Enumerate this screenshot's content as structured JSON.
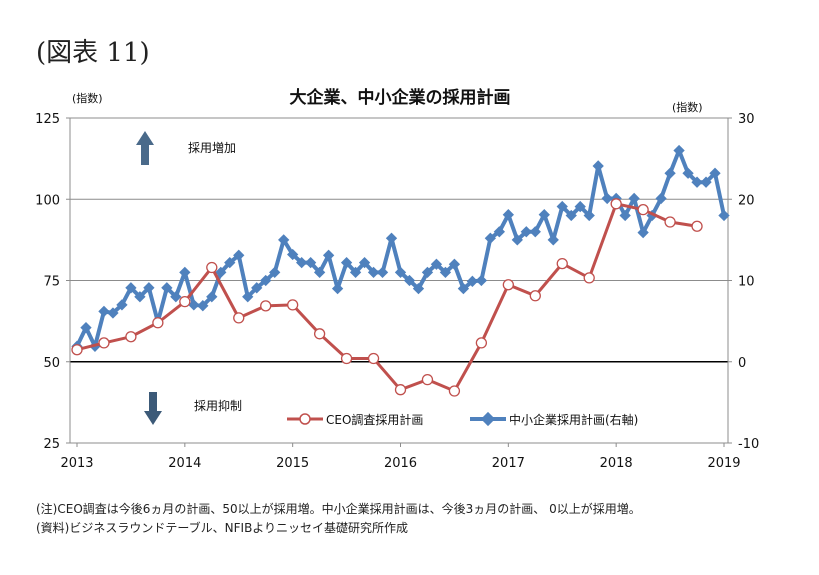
{
  "figure_label": "(図表 11)",
  "notes": [
    "(注)CEO調査は今後6ヵ月の計画、50以上が採用増。中小企業採用計画は、今後3ヵ月の計画、 0以上が採用増。",
    "(資料)ビジネスラウンドテーブル、NFIBよりニッセイ基礎研究所作成"
  ],
  "chart_data": {
    "type": "line",
    "title": "大企業、中小企業の採用計画",
    "ylabel_left": "(指数)",
    "ylabel_right": "(指数)",
    "ylim_left": [
      25,
      125
    ],
    "yticks_left": [
      25,
      50,
      75,
      100,
      125
    ],
    "ylim_right": [
      -10,
      30
    ],
    "yticks_right": [
      -10,
      0,
      10,
      20,
      30
    ],
    "xlim": [
      2013,
      2019
    ],
    "xticks": [
      "2013",
      "2014",
      "2015",
      "2016",
      "2017",
      "2018",
      "2019"
    ],
    "grid": true,
    "legend_position": "bottom-center",
    "annotations": {
      "up": "採用増加",
      "down": "採用抑制"
    },
    "colors": {
      "ceo": "#c0504d",
      "small": "#4f81bd",
      "up_arrow": "#4a6a8a",
      "down_arrow": "#3c5a78"
    },
    "series": [
      {
        "name": "CEO調査採用計画",
        "axis": "left",
        "frequency": "quarterly",
        "start": 2013,
        "values": [
          53.7,
          55.8,
          57.7,
          62.0,
          68.5,
          79.0,
          63.5,
          67.2,
          67.5,
          58.6,
          51.0,
          51.0,
          41.4,
          44.5,
          41.0,
          55.8,
          73.7,
          70.3,
          80.2,
          75.8,
          98.6,
          96.8,
          93.0,
          91.7
        ]
      },
      {
        "name": "中小企業採用計画(右軸)",
        "axis": "right",
        "frequency": "monthly",
        "start": 2013,
        "values": [
          1.9,
          4.2,
          1.9,
          6.2,
          6.0,
          7.0,
          9.1,
          8.0,
          9.1,
          4.9,
          9.1,
          8.0,
          11.0,
          7.0,
          6.9,
          8.0,
          11.0,
          12.2,
          13.1,
          8.0,
          9.1,
          10.0,
          11.0,
          15.0,
          13.2,
          12.2,
          12.2,
          11.0,
          13.1,
          9.0,
          12.2,
          11.0,
          12.2,
          11.0,
          11.0,
          15.2,
          11.0,
          10.0,
          9.0,
          11.0,
          12.0,
          11.0,
          12.0,
          9.0,
          9.9,
          10.0,
          15.2,
          16.0,
          18.1,
          15.0,
          16.0,
          16.0,
          18.1,
          15.0,
          19.1,
          18.0,
          19.1,
          18.0,
          24.1,
          20.1,
          20.1,
          18.0,
          20.1,
          15.9,
          18.0,
          20.1,
          23.2,
          26.0,
          23.2,
          22.1,
          22.1,
          23.2,
          18.0
        ]
      }
    ]
  }
}
